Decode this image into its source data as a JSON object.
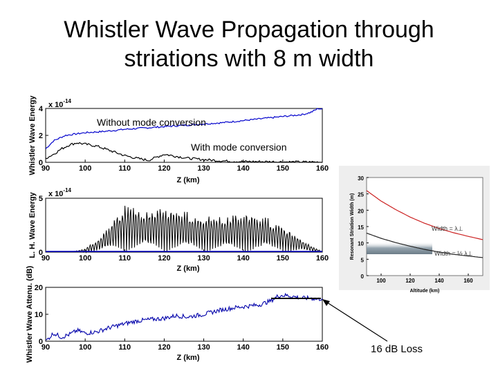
{
  "slide": {
    "title_line1": "Whistler Wave Propagation through",
    "title_line2": "striations with 8 m width",
    "loss_label": "16 dB Loss"
  },
  "chart_data": [
    {
      "type": "line",
      "xlabel": "Z (km)",
      "ylabel": "Whistler Wave Energy",
      "scale_label": "x 10",
      "scale_exponent": "-14",
      "xlim": [
        90,
        160
      ],
      "ylim": [
        0,
        4
      ],
      "xticks": [
        "90",
        "100",
        "110",
        "120",
        "130",
        "140",
        "150",
        "160"
      ],
      "yticks": [
        "0",
        "2",
        "4"
      ],
      "annotations": [
        "Without mode conversion",
        "With mode conversion"
      ],
      "series": [
        {
          "color": "#0000cc",
          "x": [
            90,
            92,
            95,
            100,
            105,
            110,
            115,
            120,
            125,
            130,
            135,
            140,
            145,
            150,
            155,
            157,
            159,
            160
          ],
          "y": [
            1.0,
            1.6,
            2.0,
            2.2,
            2.3,
            2.45,
            2.55,
            2.65,
            2.75,
            2.85,
            2.95,
            3.1,
            3.25,
            3.4,
            3.55,
            3.7,
            4.0,
            3.95
          ]
        },
        {
          "color": "#000000",
          "x": [
            90,
            92,
            94,
            96,
            98,
            100,
            103,
            106,
            110,
            113,
            116,
            120,
            123,
            126,
            130,
            135,
            140,
            145,
            150,
            155,
            160
          ],
          "y": [
            0.3,
            0.6,
            1.0,
            1.3,
            1.45,
            1.35,
            1.2,
            0.9,
            0.5,
            0.3,
            0.15,
            0.6,
            0.45,
            0.3,
            0.2,
            0.1,
            0.05,
            0.05,
            0.03,
            0.02,
            0.02
          ]
        }
      ]
    },
    {
      "type": "line",
      "xlabel": "Z (km)",
      "ylabel": "L. H. Wave Energy",
      "scale_label": "x 10",
      "scale_exponent": "-14",
      "xlim": [
        90,
        160
      ],
      "ylim": [
        0,
        5
      ],
      "xticks": [
        "90",
        "100",
        "110",
        "120",
        "130",
        "140",
        "150",
        "160"
      ],
      "yticks": [
        "0",
        "5"
      ],
      "envelope": {
        "color": "#000000",
        "x": [
          90,
          96,
          100,
          103,
          106,
          108,
          110,
          113,
          116,
          120,
          125,
          130,
          135,
          140,
          145,
          150,
          155,
          158,
          160
        ],
        "amplitude": [
          0,
          0,
          0.3,
          1.2,
          2.5,
          3.6,
          4.6,
          4.3,
          4.0,
          4.2,
          3.8,
          3.5,
          3.3,
          3.6,
          3.4,
          2.4,
          1.2,
          0.4,
          0.1
        ]
      }
    },
    {
      "type": "line",
      "xlabel": "Z (km)",
      "ylabel": "Whistler Wave Attenu. (dB)",
      "xlim": [
        90,
        160
      ],
      "ylim": [
        0,
        20
      ],
      "xticks": [
        "90",
        "100",
        "110",
        "120",
        "130",
        "140",
        "150",
        "160"
      ],
      "yticks": [
        "0",
        "10",
        "20"
      ],
      "series": [
        {
          "color": "#0000aa",
          "x": [
            90,
            91,
            92,
            94,
            96,
            98,
            100,
            103,
            106,
            110,
            113,
            116,
            120,
            123,
            126,
            130,
            134,
            138,
            141,
            144,
            147,
            149,
            151,
            153,
            155,
            157,
            159,
            160
          ],
          "y": [
            0,
            1.5,
            3,
            1.5,
            2.5,
            4,
            3,
            3.5,
            5,
            6.5,
            7.5,
            8,
            8.5,
            9.5,
            9,
            10,
            11.5,
            12.5,
            13,
            13.5,
            15,
            17,
            17,
            16.5,
            16,
            16,
            15.5,
            16
          ]
        }
      ]
    },
    {
      "type": "line",
      "xlabel": "Altitude (km)",
      "ylabel": "Resonant Striation Width (m)",
      "xlim": [
        90,
        170
      ],
      "ylim": [
        0,
        30
      ],
      "xticks": [
        "100",
        "120",
        "140",
        "160"
      ],
      "yticks": [
        "0",
        "5",
        "10",
        "15",
        "20",
        "25",
        "30"
      ],
      "series": [
        {
          "name": "Width = λ⊥",
          "color": "#cc2222",
          "x": [
            90,
            100,
            110,
            120,
            130,
            140,
            150,
            160,
            170
          ],
          "y": [
            26,
            22.8,
            20.2,
            17.9,
            16,
            14.4,
            13.1,
            12,
            11
          ]
        },
        {
          "name": "Width = ½ λ⊥",
          "color": "#222222",
          "x": [
            90,
            100,
            110,
            120,
            130,
            140,
            150,
            160,
            170
          ],
          "y": [
            13,
            11.4,
            10.1,
            9,
            8,
            7.2,
            6.5,
            6,
            5.5
          ]
        }
      ]
    }
  ]
}
